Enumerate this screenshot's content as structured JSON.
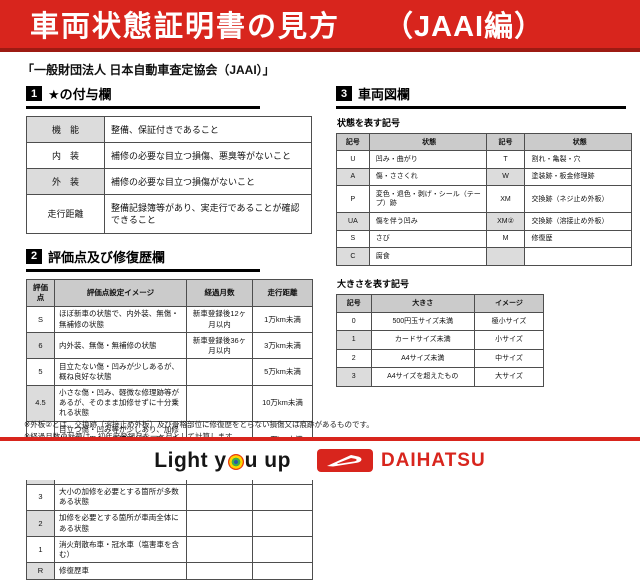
{
  "colors": {
    "brand_red": "#d8251d",
    "band_border_red": "#9d1b13",
    "table_header_gray": "#cbcbcb",
    "table_alt_gray": "#dcdcdc"
  },
  "header": {
    "title": "車両状態証明書の見方",
    "edition": "（JAAI編）",
    "subtitle": "「一般財団法人 日本自動車査定協会（JAAI）」"
  },
  "sections": {
    "star": {
      "number": "1",
      "title": "★の付与欄",
      "rows": [
        [
          "機　能",
          "整備、保証付きであること"
        ],
        [
          "内　装",
          "補修の必要な目立つ損傷、悪臭等がないこと"
        ],
        [
          "外　装",
          "補修の必要な目立つ損傷がないこと"
        ],
        [
          "走行距離",
          "整備記録簿等があり、実走行であることが確認できること"
        ]
      ]
    },
    "rating": {
      "number": "2",
      "title": "評価点及び修復歴欄",
      "headers": [
        "評価点",
        "評価点設定イメージ",
        "経過月数",
        "走行距離"
      ],
      "rows": [
        [
          "S",
          "ほぼ新車の状態で、内外装、無傷・無補修の状態",
          "新車登録後12ヶ月以内",
          "1万km未満"
        ],
        [
          "6",
          "内外装、無傷・無補修の状態",
          "新車登録後36ヶ月以内",
          "3万km未満"
        ],
        [
          "5",
          "目立たない傷・凹みが少しあるが、概ね良好な状態",
          "",
          "5万km未満"
        ],
        [
          "4.5",
          "小さな傷・凹み、軽微な修理跡等があるが、そのまま加修せずに十分乗れる状態",
          "",
          "10万km未満"
        ],
        [
          "4",
          "目立つ傷・凹み等が少しあり、加修が必要と思われる箇所が数ヶ所ある状態",
          "",
          "15万km未満"
        ],
        [
          "3.5",
          "大小の加修を必要とする箇所が数ヶ所ある状態又は外板②適用車",
          "",
          ""
        ],
        [
          "3",
          "大小の加修を必要とする箇所が多数ある状態",
          "",
          ""
        ],
        [
          "2",
          "加修を必要とする箇所が車両全体にある状態",
          "",
          ""
        ],
        [
          "1",
          "消火剤散布車・冠水車（塩害車を含む）",
          "",
          ""
        ],
        [
          "R",
          "修復歴車",
          "",
          ""
        ]
      ]
    },
    "diagram": {
      "number": "3",
      "title": "車両図欄",
      "symbols_label": "状態を表す記号",
      "symbols_headers": [
        "記号",
        "状態",
        "記号",
        "状態"
      ],
      "symbols_rows": [
        [
          "U",
          "凹み・曲がり",
          "T",
          "割れ・亀裂・穴"
        ],
        [
          "A",
          "傷・ささくれ",
          "W",
          "塗装跡・板金修理跡"
        ],
        [
          "P",
          "変色・退色・剥げ・シール（テープ）跡",
          "XM",
          "交換跡（ネジ止め外板）"
        ],
        [
          "UA",
          "傷を伴う凹み",
          "XM②",
          "交換跡（溶接止め外板）"
        ],
        [
          "S",
          "さび",
          "M",
          "修復歴"
        ],
        [
          "C",
          "腐食",
          "",
          ""
        ]
      ],
      "size_label": "大きさを表す記号",
      "size_headers": [
        "記号",
        "大きさ",
        "イメージ"
      ],
      "size_rows": [
        [
          "0",
          "500円玉サイズ未満",
          "極小サイズ"
        ],
        [
          "1",
          "カードサイズ未満",
          "小サイズ"
        ],
        [
          "2",
          "A4サイズ未満",
          "中サイズ"
        ],
        [
          "3",
          "A4サイズを超えたもの",
          "大サイズ"
        ]
      ]
    }
  },
  "footnotes": [
    "※外板②とは、交換跡（溶接止め外板）及び骨格部位に修復歴をとらない損傷又は痕跡があるものです。",
    "※経過月数の計算は、初年度登録月を一ヶ月として計算します。"
  ],
  "footer": {
    "slogan_part1": "Light y",
    "slogan_part2": "u up",
    "brand": "DAIHATSU"
  }
}
